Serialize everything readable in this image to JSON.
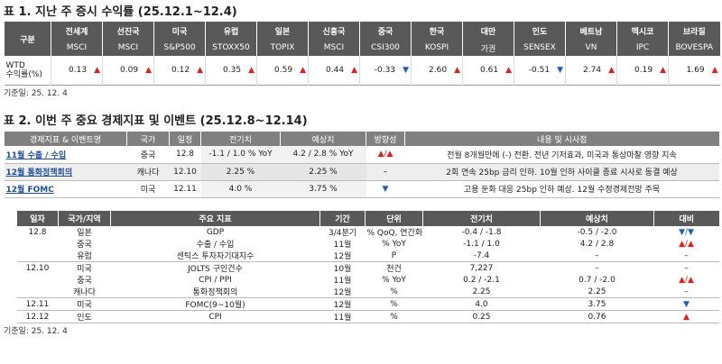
{
  "table1": {
    "title": "표 1. 지난 주 증시 수익률 (25.12.1~12.4)",
    "corner": "구분",
    "regions": [
      "전세계",
      "선진국",
      "미국",
      "유럽",
      "일본",
      "신흥국",
      "중국",
      "한국",
      "대만",
      "인도",
      "베트남",
      "멕시코",
      "브라질"
    ],
    "indices": [
      "MSCI",
      "MSCI",
      "S&P500",
      "STOXX50",
      "TOPIX",
      "MSCI",
      "CSI300",
      "KOSPI",
      "가권",
      "SENSEX",
      "VN",
      "IPC",
      "BOVESPA"
    ],
    "row_label": [
      "WTD",
      "수익률(%)"
    ],
    "values": [
      {
        "value": "0.13",
        "arrow": "▲"
      },
      {
        "value": "0.09",
        "arrow": "▲"
      },
      {
        "value": "0.12",
        "arrow": "▲"
      },
      {
        "value": "0.35",
        "arrow": "▲"
      },
      {
        "value": "0.59",
        "arrow": "▲"
      },
      {
        "value": "0.44",
        "arrow": "▲"
      },
      {
        "value": "-0.33",
        "arrow": "▼"
      },
      {
        "value": "2.60",
        "arrow": "▲"
      },
      {
        "value": "0.61",
        "arrow": "▲"
      },
      {
        "value": "-0.51",
        "arrow": "▼"
      },
      {
        "value": "2.74",
        "arrow": "▲"
      },
      {
        "value": "0.19",
        "arrow": "▲"
      },
      {
        "value": "1.69",
        "arrow": "▲"
      }
    ],
    "note": "기준일: 25. 12. 4"
  },
  "table2": {
    "title": "표 2. 이번 주 중요 경제지표 및 이벤트 (25.12.8~12.14)",
    "headers": [
      "경제지표 & 이벤트명",
      "국가",
      "일정",
      "전기치",
      "예상치",
      "방향성",
      "내용 및 시사점"
    ],
    "rows": [
      [
        "11월 수출 / 수입",
        "중국",
        "12.8",
        "-1.1 / 1.0 % YoY",
        "4.2 / 2.8 % YoY",
        "▲/▲",
        "전월 8개월만에 (-) 전환. 전년 기저효과, 미국과 통상마찰 영향 지속"
      ],
      [
        "12월 통화정책회의",
        "캐나다",
        "12.10",
        "2.25 %",
        "2.25 %",
        "–",
        "2회 연속 25bp 금리 인하. 10월 인하 사이클 종료 시사로 동결 예상"
      ],
      [
        "12월 FOMC",
        "미국",
        "12.11",
        "4.0 %",
        "3.75 %",
        "▼",
        "고용 둔화 대응 25bp 인하 예상. 12월 수정경제전망 주목"
      ]
    ]
  },
  "table3": {
    "headers": [
      "일자",
      "국가/지역",
      "주요 지표",
      "기간",
      "단위",
      "전기치",
      "예상치",
      "대비"
    ],
    "rows": [
      {
        "date": "12.8",
        "cells": [
          "일본",
          "GDP",
          "3/4분기",
          "% QoQ, 연간화",
          "-0.4 / -1.8",
          "-0.5 / -2.0",
          "▼/▼"
        ]
      },
      {
        "cells": [
          "중국",
          "수출 / 수입",
          "11월",
          "% YoY",
          "-1.1 / 1.0",
          "4.2 / 2.8",
          "▲/▲"
        ]
      },
      {
        "cells": [
          "유럽",
          "센틱스 투자자기대지수",
          "12월",
          "P",
          "-7.4",
          "–",
          "–"
        ]
      },
      {
        "date": "12.10",
        "cells": [
          "미국",
          "JOLTS 구인건수",
          "10월",
          "천건",
          "7,227",
          "–",
          "–"
        ]
      },
      {
        "cells": [
          "중국",
          "CPI / PPI",
          "11월",
          "% YoY",
          "0.2 / -2.1",
          "0.7 / -2.0",
          "▲/▲"
        ]
      },
      {
        "cells": [
          "캐나다",
          "통화정책회의",
          "12월",
          "%",
          "2.25",
          "2.25",
          "–"
        ]
      },
      {
        "date": "12.11",
        "cells": [
          "미국",
          "FOMC(9~10월)",
          "12월",
          "%",
          "4.0",
          "3.75",
          "▼"
        ]
      },
      {
        "date": "12.12",
        "cells": [
          "인도",
          "CPI",
          "11월",
          "%",
          "0.25",
          "0.76",
          "▲"
        ]
      }
    ],
    "note": "기준일: 25. 12. 4"
  }
}
